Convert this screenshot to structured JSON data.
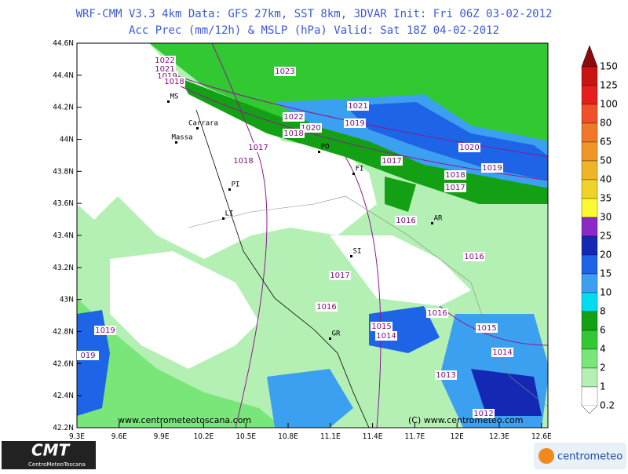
{
  "header": {
    "line1": "WRF-CMM V3.3 4km  Data: GFS 27km, SST 8km, 3DVAR  Init: Fri 06Z 03-02-2012",
    "line2": "Acc Prec (mm/12h) & MSLP (hPa)  Valid: Sat 18Z 04-02-2012"
  },
  "axes": {
    "lat_labels": [
      "44.6N",
      "44.4N",
      "44.2N",
      "44N",
      "43.8N",
      "43.6N",
      "43.4N",
      "43.2N",
      "43N",
      "42.8N",
      "42.6N",
      "42.4N",
      "42.2N"
    ],
    "lon_labels": [
      "9.3E",
      "9.6E",
      "9.9E",
      "10.2E",
      "10.5E",
      "10.8E",
      "11.1E",
      "11.4E",
      "11.7E",
      "12E",
      "12.3E",
      "12.6E"
    ]
  },
  "colorbar": {
    "labels": [
      "150",
      "125",
      "100",
      "80",
      "65",
      "50",
      "40",
      "35",
      "30",
      "25",
      "20",
      "15",
      "10",
      "8",
      "6",
      "4",
      "2",
      "1",
      "0.2"
    ]
  },
  "isobars": [
    "1022",
    "1021",
    "1019",
    "1018",
    "1023",
    "1021",
    "1022",
    "1020",
    "1019",
    "1018",
    "1017",
    "1018",
    "1017",
    "1020",
    "1018",
    "1019",
    "1017",
    "1016",
    "1016",
    "1017",
    "1016",
    "1016",
    "1019",
    "1015",
    "1014",
    "1015",
    "1014",
    "1013",
    "1012",
    "019"
  ],
  "cities": [
    "MS",
    "Carrara",
    "Massa",
    "PO",
    "FI",
    "PI",
    "LI",
    "AR",
    "SI",
    "GR"
  ],
  "footer": {
    "left_credit": "www.centrometeotoscana.com",
    "right_credit": "(C) www.centrometeo.com"
  },
  "logos": {
    "cmt": "CMT",
    "cmt_sub": "CentroMeteoToscana",
    "centrometeo": "centrometeo"
  }
}
